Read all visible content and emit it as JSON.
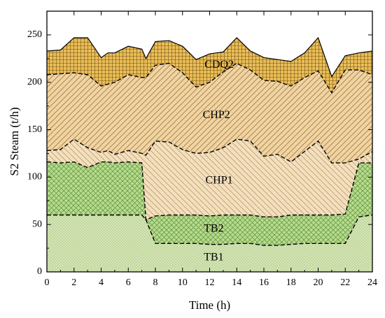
{
  "chart_data": {
    "type": "area",
    "stacked": true,
    "xlabel": "Time (h)",
    "ylabel": "S2 Steam (t/h)",
    "xlim": [
      0,
      24
    ],
    "ylim": [
      0,
      275
    ],
    "x_ticks": [
      0,
      2,
      4,
      6,
      8,
      10,
      12,
      14,
      16,
      18,
      20,
      22,
      24
    ],
    "y_ticks": [
      0,
      50,
      100,
      150,
      200,
      250
    ],
    "grid": false,
    "legend": "none",
    "x": [
      0,
      1,
      2,
      3,
      4,
      4.5,
      5,
      6,
      7,
      7.3,
      8,
      9,
      10,
      11,
      12,
      13,
      14,
      15,
      16,
      17,
      18,
      19,
      20,
      21,
      22,
      23,
      24
    ],
    "series": [
      {
        "name": "TB1",
        "pattern": "dots",
        "color": "#d4e6b5",
        "values": [
          60,
          60,
          60,
          60,
          60,
          60,
          60,
          60,
          60,
          55,
          30,
          30,
          30,
          30,
          29,
          29,
          30,
          30,
          28,
          28,
          29,
          30,
          30,
          30,
          30,
          58,
          60
        ]
      },
      {
        "name": "TB2",
        "pattern": "crosshatch",
        "color": "#b5dc8d",
        "values": [
          56,
          55,
          56,
          50,
          56,
          56,
          55,
          56,
          55,
          0,
          29,
          30,
          30,
          30,
          30,
          31,
          30,
          30,
          30,
          30,
          31,
          30,
          30,
          30,
          31,
          57,
          55
        ]
      },
      {
        "name": "CHP1",
        "pattern": "backslash",
        "color": "#f4dfbd",
        "values": [
          12,
          14,
          24,
          21,
          10,
          12,
          9,
          12,
          10,
          68,
          79,
          77,
          69,
          65,
          67,
          71,
          80,
          78,
          64,
          66,
          56,
          67,
          78,
          55,
          54,
          4,
          12
        ]
      },
      {
        "name": "CHP2",
        "pattern": "slash",
        "color": "#f0d3a0",
        "values": [
          80,
          80,
          70,
          77,
          70,
          70,
          76,
          80,
          80,
          82,
          80,
          83,
          81,
          70,
          74,
          80,
          80,
          75,
          80,
          77,
          80,
          78,
          74,
          74,
          98,
          94,
          81
        ]
      },
      {
        "name": "CDQ2",
        "pattern": "grid",
        "color": "#ebbd56",
        "values": [
          25,
          25,
          37,
          39,
          30,
          33,
          31,
          30,
          30,
          20,
          25,
          24,
          28,
          29,
          30,
          21,
          27,
          20,
          24,
          23,
          26,
          26,
          35,
          17,
          15,
          18,
          25
        ]
      }
    ],
    "region_labels": [
      {
        "text": "CDQ2",
        "x": 12.7,
        "y": 218
      },
      {
        "text": "CHP2",
        "x": 12.5,
        "y": 165
      },
      {
        "text": "CHP1",
        "x": 12.7,
        "y": 96
      },
      {
        "text": "TB2",
        "x": 12.3,
        "y": 45
      },
      {
        "text": "TB1",
        "x": 12.3,
        "y": 15
      }
    ]
  }
}
